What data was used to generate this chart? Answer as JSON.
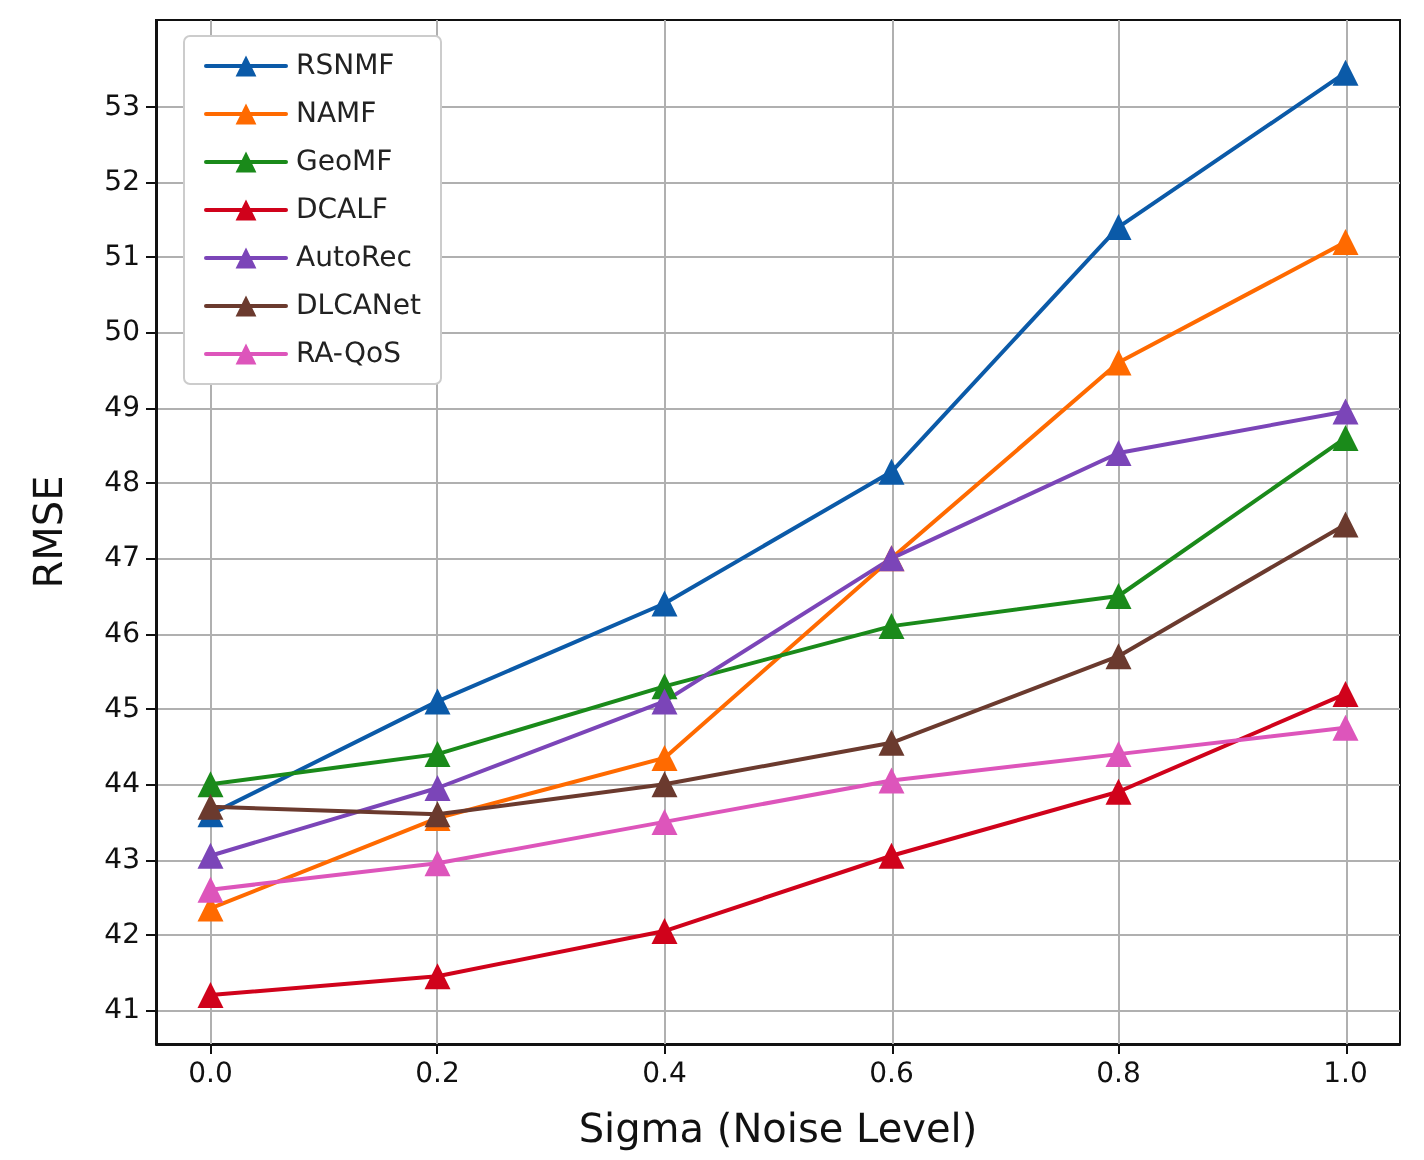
{
  "chart_data": {
    "type": "line",
    "xlabel": "Sigma (Noise Level)",
    "ylabel": "RMSE",
    "x": [
      0.0,
      0.2,
      0.4,
      0.6,
      0.8,
      1.0
    ],
    "series": [
      {
        "name": "RSNMF",
        "color": "#0b5aa8",
        "values": [
          43.6,
          45.1,
          46.4,
          48.15,
          51.4,
          53.45
        ]
      },
      {
        "name": "NAMF",
        "color": "#ff6a00",
        "values": [
          42.35,
          43.55,
          44.35,
          47.0,
          49.6,
          51.2
        ]
      },
      {
        "name": "GeoMF",
        "color": "#1a8a1a",
        "values": [
          44.0,
          44.4,
          45.3,
          46.1,
          46.5,
          48.6
        ]
      },
      {
        "name": "DCALF",
        "color": "#d0021b",
        "values": [
          41.2,
          41.45,
          42.05,
          43.05,
          43.9,
          45.2
        ]
      },
      {
        "name": "AutoRec",
        "color": "#7b45b8",
        "values": [
          43.05,
          43.95,
          45.1,
          47.0,
          48.4,
          48.95
        ]
      },
      {
        "name": "DLCANet",
        "color": "#6b3a2e",
        "values": [
          43.7,
          43.6,
          44.0,
          44.55,
          45.7,
          47.45
        ]
      },
      {
        "name": "RA-QoS",
        "color": "#dd55bb",
        "values": [
          42.6,
          42.95,
          43.5,
          44.05,
          44.4,
          44.75
        ]
      }
    ],
    "xlim": [
      -0.048,
      1.048
    ],
    "xticks": [
      {
        "value": 0,
        "label": "0.0"
      },
      {
        "value": 0.2,
        "label": "0.2"
      },
      {
        "value": 0.4,
        "label": "0.4"
      },
      {
        "value": 0.6,
        "label": "0.6"
      },
      {
        "value": 0.8,
        "label": "0.8"
      },
      {
        "value": 1,
        "label": "1.0"
      }
    ],
    "ylim": [
      40.55,
      54.15
    ],
    "yticks": [
      41,
      42,
      43,
      44,
      45,
      46,
      47,
      48,
      49,
      50,
      51,
      52,
      53
    ],
    "grid": true,
    "legend": "top left",
    "marker": "triangle",
    "line_style": "solid"
  }
}
